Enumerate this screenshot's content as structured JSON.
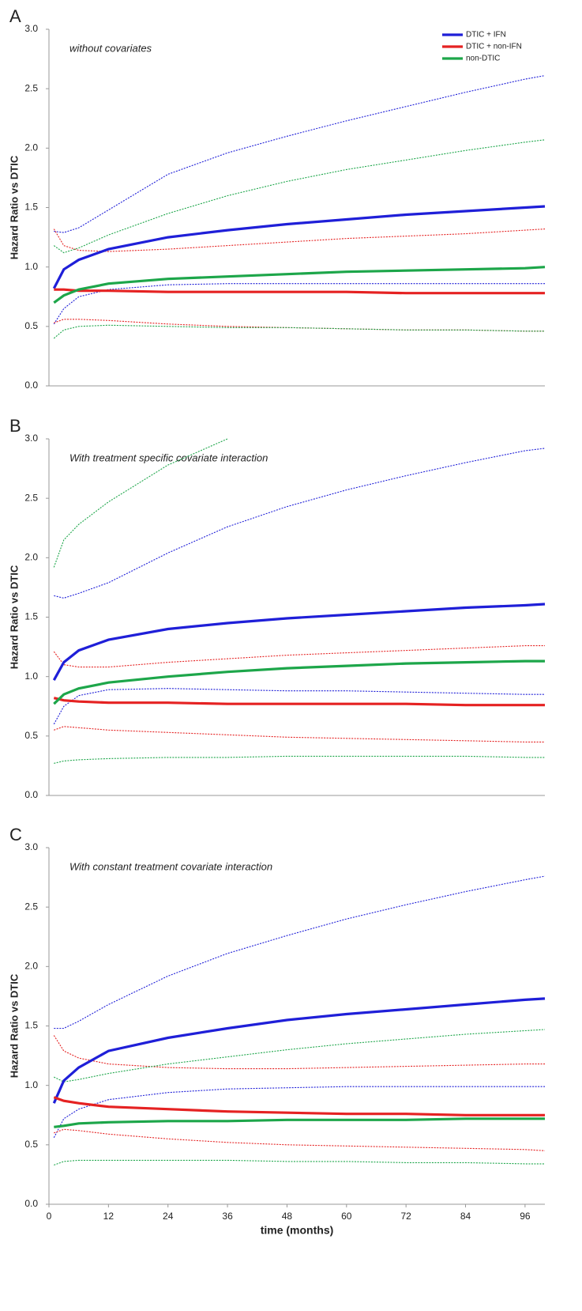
{
  "chart_data": [
    {
      "type": "line",
      "panel_label": "A",
      "annotation": "without covariates",
      "ylabel": "Hazard Ratio vs DTIC",
      "ylim": [
        0,
        3
      ],
      "yticks": [
        {
          "value": 0,
          "label": "0.0"
        },
        {
          "value": 0.5,
          "label": "0.5"
        },
        {
          "value": 1,
          "label": "1.0"
        },
        {
          "value": 1.5,
          "label": "1.5"
        },
        {
          "value": 2,
          "label": "2.0"
        },
        {
          "value": 2.5,
          "label": "2.5"
        },
        {
          "value": 3,
          "label": "3.0"
        }
      ],
      "xlim": [
        0,
        100
      ],
      "legend": "top-right",
      "x": [
        1,
        3,
        6,
        12,
        24,
        36,
        48,
        60,
        72,
        84,
        96,
        100
      ],
      "series": [
        {
          "color": "#1f1fd8",
          "style": "dashed",
          "values": [
            1.3,
            1.29,
            1.33,
            1.48,
            1.78,
            1.96,
            2.1,
            2.23,
            2.35,
            2.47,
            2.58,
            2.61
          ]
        },
        {
          "color": "#1f1fd8",
          "style": "dashed",
          "values": [
            0.52,
            0.65,
            0.75,
            0.81,
            0.85,
            0.86,
            0.86,
            0.86,
            0.86,
            0.86,
            0.86,
            0.86
          ]
        },
        {
          "color": "#e52222",
          "style": "dashed",
          "values": [
            1.32,
            1.18,
            1.14,
            1.13,
            1.15,
            1.18,
            1.21,
            1.24,
            1.26,
            1.28,
            1.31,
            1.32
          ]
        },
        {
          "color": "#e52222",
          "style": "dashed",
          "values": [
            0.53,
            0.56,
            0.56,
            0.55,
            0.52,
            0.5,
            0.49,
            0.48,
            0.47,
            0.47,
            0.46,
            0.46
          ]
        },
        {
          "color": "#1da64a",
          "style": "dashed",
          "values": [
            1.18,
            1.12,
            1.16,
            1.27,
            1.45,
            1.6,
            1.72,
            1.82,
            1.9,
            1.98,
            2.05,
            2.07
          ]
        },
        {
          "color": "#1da64a",
          "style": "dashed",
          "values": [
            0.4,
            0.47,
            0.5,
            0.51,
            0.5,
            0.49,
            0.49,
            0.48,
            0.47,
            0.47,
            0.46,
            0.46
          ]
        },
        {
          "name": "DTIC + IFN",
          "color": "#1f1fd8",
          "style": "solid",
          "values": [
            0.82,
            0.98,
            1.06,
            1.15,
            1.25,
            1.31,
            1.36,
            1.4,
            1.44,
            1.47,
            1.5,
            1.51
          ]
        },
        {
          "name": "DTIC + non-IFN",
          "color": "#e52222",
          "style": "solid",
          "values": [
            0.81,
            0.81,
            0.8,
            0.8,
            0.79,
            0.79,
            0.79,
            0.79,
            0.78,
            0.78,
            0.78,
            0.78
          ]
        },
        {
          "name": "non-DTIC",
          "color": "#1da64a",
          "style": "solid",
          "values": [
            0.7,
            0.76,
            0.81,
            0.86,
            0.9,
            0.92,
            0.94,
            0.96,
            0.97,
            0.98,
            0.99,
            1.0
          ]
        }
      ]
    },
    {
      "type": "line",
      "panel_label": "B",
      "annotation": "With treatment specific covariate interaction",
      "ylabel": "Hazard Ratio vs DTIC",
      "ylim": [
        0,
        3
      ],
      "yticks": [
        {
          "value": 0,
          "label": "0.0"
        },
        {
          "value": 0.5,
          "label": "0.5"
        },
        {
          "value": 1,
          "label": "1.0"
        },
        {
          "value": 1.5,
          "label": "1.5"
        },
        {
          "value": 2,
          "label": "2.0"
        },
        {
          "value": 2.5,
          "label": "2.5"
        },
        {
          "value": 3,
          "label": "3.0"
        }
      ],
      "xlim": [
        0,
        100
      ],
      "x": [
        1,
        3,
        6,
        12,
        24,
        36,
        48,
        60,
        72,
        84,
        96,
        100
      ],
      "series": [
        {
          "color": "#1f1fd8",
          "style": "dashed",
          "values": [
            1.68,
            1.66,
            1.7,
            1.79,
            2.04,
            2.26,
            2.43,
            2.57,
            2.69,
            2.8,
            2.9,
            2.92
          ]
        },
        {
          "color": "#1f1fd8",
          "style": "dashed",
          "values": [
            0.6,
            0.75,
            0.84,
            0.89,
            0.9,
            0.89,
            0.88,
            0.88,
            0.87,
            0.86,
            0.85,
            0.85
          ]
        },
        {
          "color": "#e52222",
          "style": "dashed",
          "values": [
            1.21,
            1.1,
            1.08,
            1.08,
            1.12,
            1.15,
            1.18,
            1.2,
            1.22,
            1.24,
            1.26,
            1.26
          ]
        },
        {
          "color": "#e52222",
          "style": "dashed",
          "values": [
            0.55,
            0.58,
            0.57,
            0.55,
            0.53,
            0.51,
            0.49,
            0.48,
            0.47,
            0.46,
            0.45,
            0.45
          ]
        },
        {
          "color": "#1da64a",
          "style": "dashed",
          "values": [
            1.92,
            2.15,
            2.28,
            2.47,
            2.78,
            3.0,
            null,
            null,
            null,
            null,
            null,
            null
          ]
        },
        {
          "color": "#1da64a",
          "style": "dashed",
          "values": [
            0.27,
            0.29,
            0.3,
            0.31,
            0.32,
            0.32,
            0.33,
            0.33,
            0.33,
            0.33,
            0.32,
            0.32
          ]
        },
        {
          "color": "#1f1fd8",
          "style": "solid",
          "values": [
            0.97,
            1.12,
            1.22,
            1.31,
            1.4,
            1.45,
            1.49,
            1.52,
            1.55,
            1.58,
            1.6,
            1.61
          ]
        },
        {
          "color": "#e52222",
          "style": "solid",
          "values": [
            0.82,
            0.8,
            0.79,
            0.78,
            0.78,
            0.77,
            0.77,
            0.77,
            0.77,
            0.76,
            0.76,
            0.76
          ]
        },
        {
          "color": "#1da64a",
          "style": "solid",
          "values": [
            0.77,
            0.85,
            0.9,
            0.95,
            1.0,
            1.04,
            1.07,
            1.09,
            1.11,
            1.12,
            1.13,
            1.13
          ]
        }
      ]
    },
    {
      "type": "line",
      "panel_label": "C",
      "annotation": "With constant treatment covariate interaction",
      "ylabel": "Hazard Ratio vs DTIC",
      "xlabel": "time (months)",
      "ylim": [
        0,
        3
      ],
      "yticks": [
        {
          "value": 0,
          "label": "0.0"
        },
        {
          "value": 0.5,
          "label": "0.5"
        },
        {
          "value": 1,
          "label": "1.0"
        },
        {
          "value": 1.5,
          "label": "1.5"
        },
        {
          "value": 2,
          "label": "2.0"
        },
        {
          "value": 2.5,
          "label": "2.5"
        },
        {
          "value": 3,
          "label": "3.0"
        }
      ],
      "xlim": [
        0,
        100
      ],
      "xticks": [
        0,
        12,
        24,
        36,
        48,
        60,
        72,
        84,
        96
      ],
      "x": [
        1,
        3,
        6,
        12,
        24,
        36,
        48,
        60,
        72,
        84,
        96,
        100
      ],
      "series": [
        {
          "color": "#1f1fd8",
          "style": "dashed",
          "values": [
            1.48,
            1.48,
            1.54,
            1.68,
            1.92,
            2.11,
            2.26,
            2.4,
            2.52,
            2.63,
            2.73,
            2.76
          ]
        },
        {
          "color": "#1f1fd8",
          "style": "dashed",
          "values": [
            0.56,
            0.72,
            0.8,
            0.88,
            0.94,
            0.97,
            0.98,
            0.99,
            0.99,
            0.99,
            0.99,
            0.99
          ]
        },
        {
          "color": "#e52222",
          "style": "dashed",
          "values": [
            1.42,
            1.29,
            1.23,
            1.18,
            1.15,
            1.14,
            1.14,
            1.15,
            1.16,
            1.17,
            1.18,
            1.18
          ]
        },
        {
          "color": "#e52222",
          "style": "dashed",
          "values": [
            0.6,
            0.63,
            0.62,
            0.59,
            0.55,
            0.52,
            0.5,
            0.49,
            0.48,
            0.47,
            0.46,
            0.45
          ]
        },
        {
          "color": "#1da64a",
          "style": "dashed",
          "values": [
            1.07,
            1.03,
            1.05,
            1.1,
            1.18,
            1.24,
            1.3,
            1.35,
            1.39,
            1.43,
            1.46,
            1.47
          ]
        },
        {
          "color": "#1da64a",
          "style": "dashed",
          "values": [
            0.33,
            0.36,
            0.37,
            0.37,
            0.37,
            0.37,
            0.36,
            0.36,
            0.35,
            0.35,
            0.34,
            0.34
          ]
        },
        {
          "color": "#1f1fd8",
          "style": "solid",
          "values": [
            0.85,
            1.04,
            1.15,
            1.29,
            1.4,
            1.48,
            1.55,
            1.6,
            1.64,
            1.68,
            1.72,
            1.73
          ]
        },
        {
          "color": "#e52222",
          "style": "solid",
          "values": [
            0.9,
            0.87,
            0.85,
            0.82,
            0.8,
            0.78,
            0.77,
            0.76,
            0.76,
            0.75,
            0.75,
            0.75
          ]
        },
        {
          "color": "#1da64a",
          "style": "solid",
          "values": [
            0.65,
            0.66,
            0.68,
            0.69,
            0.7,
            0.7,
            0.71,
            0.71,
            0.71,
            0.72,
            0.72,
            0.72
          ]
        }
      ]
    }
  ]
}
